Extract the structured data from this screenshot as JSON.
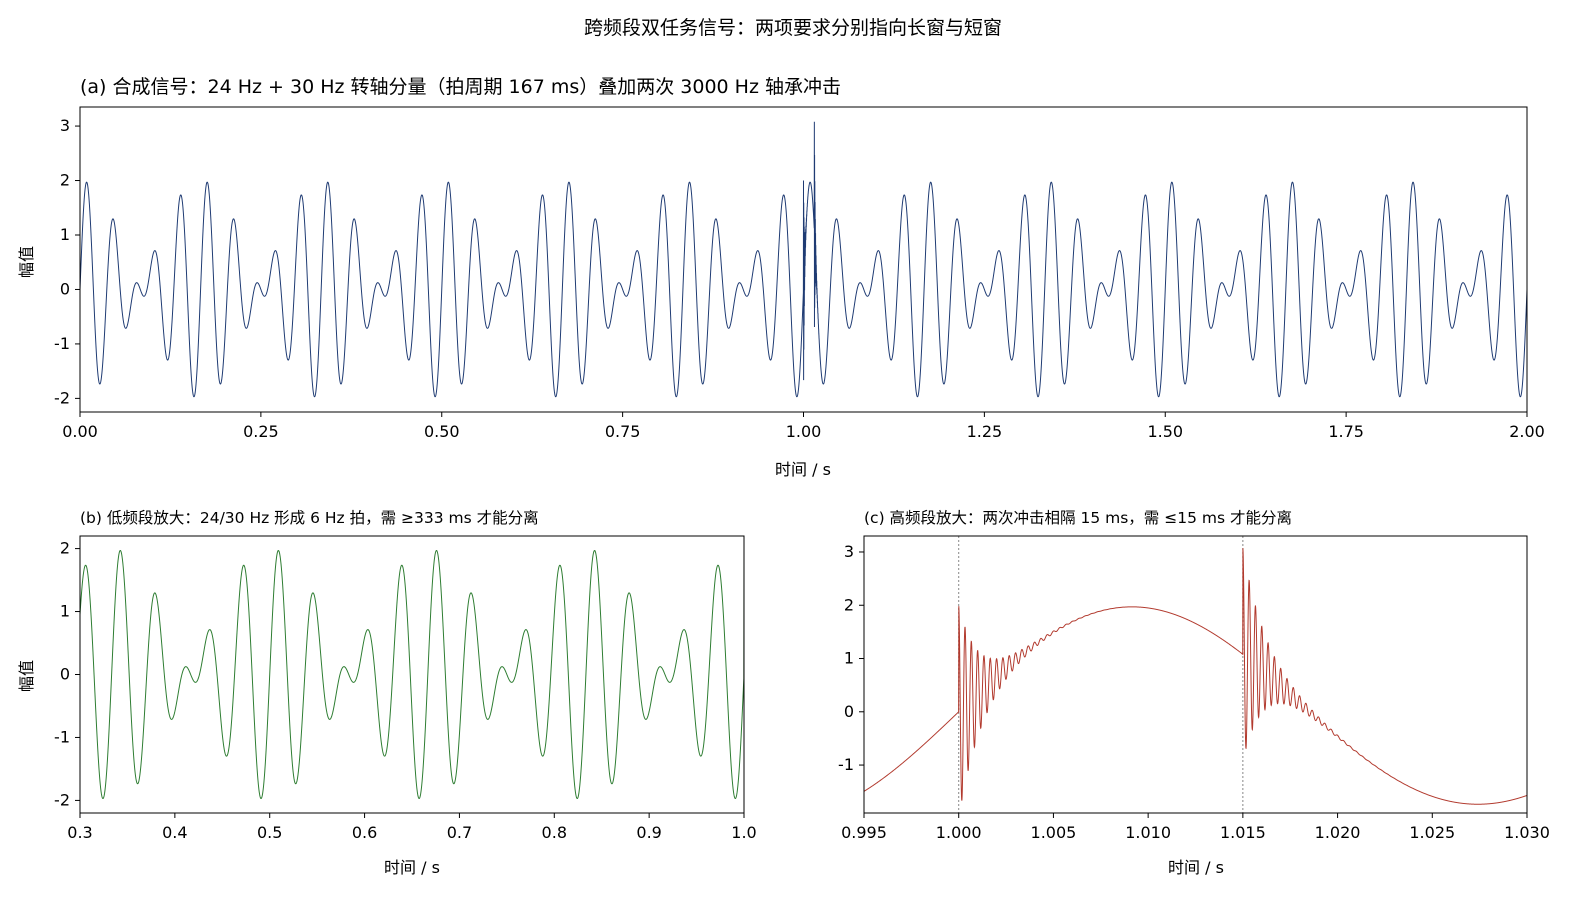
{
  "suptitle": "跨频段双任务信号：两项要求分别指向长窗与短窗",
  "chart_data": [
    {
      "type": "line",
      "id": "a",
      "title": "(a) 合成信号：24 Hz + 30 Hz 转轴分量（拍周期 167 ms）叠加两次 3000 Hz 轴承冲击",
      "xlabel": "时间 / s",
      "ylabel": "幅值",
      "xlim": [
        0.0,
        2.0
      ],
      "ylim": [
        -2.25,
        3.35
      ],
      "xticks": [
        0.0,
        0.25,
        0.5,
        0.75,
        1.0,
        1.25,
        1.5,
        1.75,
        2.0
      ],
      "xtick_labels": [
        "0.00",
        "0.25",
        "0.50",
        "0.75",
        "1.00",
        "1.25",
        "1.50",
        "1.75",
        "2.00"
      ],
      "yticks": [
        -2,
        -1,
        0,
        1,
        2,
        3
      ],
      "ytick_labels": [
        "-2",
        "-1",
        "0",
        "1",
        "2",
        "3"
      ],
      "color": "#1f3b73",
      "series": [
        {
          "components": [
            {
              "freq_hz": 24,
              "amplitude": 1.0
            },
            {
              "freq_hz": 30,
              "amplitude": 1.0
            }
          ],
          "impulses": [
            {
              "t_s": 1.0,
              "freq_hz": 3000,
              "amplitude": 2.0
            },
            {
              "t_s": 1.015,
              "freq_hz": 3000,
              "amplitude": 2.0
            }
          ]
        }
      ]
    },
    {
      "type": "line",
      "id": "b",
      "title": "(b) 低频段放大：24/30 Hz 形成 6 Hz 拍，需 ≥333 ms 才能分离",
      "xlabel": "时间 / s",
      "ylabel": "幅值",
      "xlim": [
        0.3,
        1.0
      ],
      "ylim": [
        -2.2,
        2.2
      ],
      "xticks": [
        0.3,
        0.4,
        0.5,
        0.6,
        0.7,
        0.8,
        0.9,
        1.0
      ],
      "xtick_labels": [
        "0.3",
        "0.4",
        "0.5",
        "0.6",
        "0.7",
        "0.8",
        "0.9",
        "1.0"
      ],
      "yticks": [
        -2,
        -1,
        0,
        1,
        2
      ],
      "ytick_labels": [
        "-2",
        "-1",
        "0",
        "1",
        "2"
      ],
      "color": "#2e7d32"
    },
    {
      "type": "line",
      "id": "c",
      "title": "(c) 高频段放大：两次冲击相隔 15 ms，需 ≤15 ms 才能分离",
      "xlabel": "时间 / s",
      "ylabel": "",
      "xlim": [
        0.995,
        1.03
      ],
      "ylim": [
        -1.9,
        3.3
      ],
      "xticks": [
        0.995,
        1.0,
        1.005,
        1.01,
        1.015,
        1.02,
        1.025,
        1.03
      ],
      "xtick_labels": [
        "0.995",
        "1.000",
        "1.005",
        "1.010",
        "1.015",
        "1.020",
        "1.025",
        "1.030"
      ],
      "yticks": [
        -1,
        0,
        1,
        2,
        3
      ],
      "ytick_labels": [
        "-1",
        "0",
        "1",
        "2",
        "3"
      ],
      "vlines": [
        1.0,
        1.015
      ],
      "color": "#b23a2e"
    }
  ]
}
